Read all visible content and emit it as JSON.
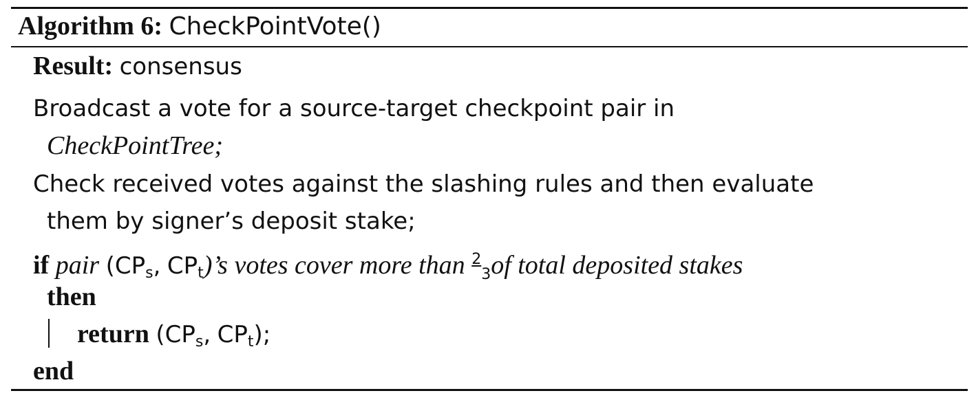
{
  "algorithm": {
    "label": "Algorithm 6:",
    "name": "CheckPointVote()",
    "result_label": "Result:",
    "result_value": "consensus",
    "step1_line1": "Broadcast a vote for a source-target checkpoint pair in",
    "step1_line2": "CheckPointTree;",
    "step2_line1": "Check received votes against the slashing rules and then evaluate",
    "step2_line2": "them by signer’s deposit stake;",
    "if_keyword": "if",
    "cond_pair": "pair",
    "open_paren": "(",
    "cp": "CP",
    "sub_s": "s",
    "sub_t": "t",
    "comma": ",",
    "close_paren_possessive": ")’s",
    "cond_text": "votes cover more than",
    "frac_num": "2",
    "frac_den": "3",
    "cond_tail": "of total deposited stakes",
    "then_keyword": "then",
    "return_keyword": "return",
    "close_semicolon": ");",
    "end_keyword": "end"
  }
}
